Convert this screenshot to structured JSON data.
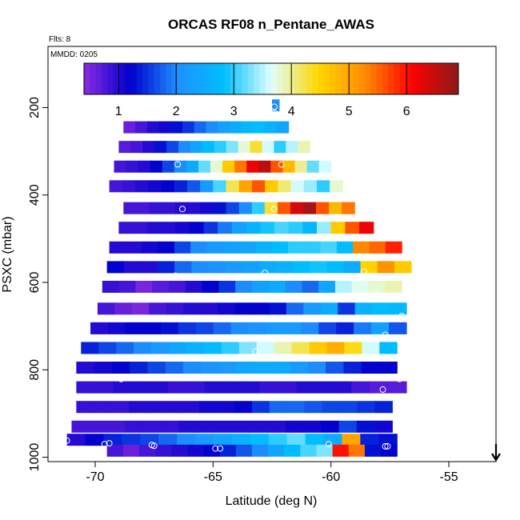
{
  "chart_data": {
    "type": "heatmap",
    "title": "ORCAS RF08 n_Pentane_AWAS",
    "flights_note": "Flts: 8",
    "date_note": "MMDD: 0205",
    "xlabel": "Latitude (deg N)",
    "ylabel": "PSXC (mbar)",
    "xlim": [
      -72,
      -53
    ],
    "ylim": [
      1010,
      60
    ],
    "y_reversed": true,
    "x_ticks": [
      -70,
      -65,
      -60,
      -55
    ],
    "x_tick_labels": [
      "-70",
      "-65",
      "-60",
      "-55"
    ],
    "y_ticks": [
      200,
      400,
      600,
      800,
      1000
    ],
    "y_tick_labels": [
      "200",
      "400",
      "600",
      "800",
      "1000"
    ],
    "colorbar": {
      "min": 0.4,
      "max": 6.9,
      "ticks": [
        1,
        2,
        3,
        4,
        5,
        6
      ],
      "tick_labels": [
        "1",
        "2",
        "3",
        "4",
        "5",
        "6"
      ],
      "colors": [
        "#8a2be2",
        "#0000cd",
        "#1e90ff",
        "#00bfff",
        "#e0ffff",
        "#ffd700",
        "#ff8c00",
        "#ff0000",
        "#8b1a1a"
      ]
    },
    "band_height_mbar": 50,
    "bands": [
      {
        "p": 195,
        "lat_start": -62.5,
        "lat_end": -62.2,
        "values": [
          2.0
        ]
      },
      {
        "p": 245,
        "lat_start": -68.8,
        "lat_end": -61.8,
        "values": [
          0.6,
          0.8,
          1.0,
          1.1,
          1.3,
          1.5,
          1.8,
          2.0,
          2.3,
          2.5,
          2.7,
          2.8,
          2.6,
          2.4
        ]
      },
      {
        "p": 290,
        "lat_start": -69.0,
        "lat_end": -60.9,
        "values": [
          0.7,
          0.8,
          1.0,
          1.3,
          1.6,
          2.0,
          2.4,
          2.8,
          3.0,
          3.3,
          3.8,
          4.3,
          3.6,
          3.0,
          3.5,
          3.9
        ]
      },
      {
        "p": 335,
        "lat_start": -69.2,
        "lat_end": -60.0,
        "values": [
          0.8,
          0.9,
          1.0,
          1.2,
          1.6,
          2.0,
          2.5,
          3.2,
          3.8,
          4.6,
          5.4,
          6.2,
          6.6,
          5.6,
          4.8,
          4.0,
          3.2,
          3.6
        ]
      },
      {
        "p": 380,
        "lat_start": -69.4,
        "lat_end": -59.5,
        "values": [
          0.8,
          0.9,
          1.0,
          1.1,
          1.2,
          1.4,
          1.7,
          2.2,
          3.1,
          4.2,
          5.0,
          5.6,
          4.6,
          4.1,
          3.6,
          3.4,
          3.0,
          3.8
        ]
      },
      {
        "p": 430,
        "lat_start": -68.8,
        "lat_end": -59.0,
        "values": [
          0.8,
          0.8,
          0.9,
          0.9,
          1.0,
          1.0,
          1.1,
          1.3,
          1.6,
          2.0,
          3.0,
          4.3,
          5.6,
          6.4,
          6.7,
          5.6,
          4.8,
          5.4
        ]
      },
      {
        "p": 475,
        "lat_start": -69.0,
        "lat_end": -58.2,
        "values": [
          0.9,
          0.9,
          1.0,
          1.0,
          1.1,
          1.2,
          1.5,
          1.9,
          2.3,
          2.6,
          2.9,
          3.1,
          3.0,
          2.7,
          3.4,
          4.6,
          5.6,
          6.2
        ]
      },
      {
        "p": 520,
        "lat_start": -69.4,
        "lat_end": -57.0,
        "values": [
          1.0,
          1.0,
          1.1,
          1.2,
          1.6,
          2.0,
          2.2,
          2.3,
          2.4,
          2.6,
          2.8,
          3.0,
          3.0,
          3.1,
          2.8,
          5.3,
          5.5,
          5.9
        ]
      },
      {
        "p": 565,
        "lat_start": -69.5,
        "lat_end": -56.6,
        "values": [
          1.2,
          1.0,
          1.0,
          1.4,
          1.8,
          2.0,
          2.1,
          2.2,
          2.3,
          2.5,
          2.6,
          2.8,
          2.9,
          2.8,
          2.5,
          4.5,
          5.2,
          4.6
        ]
      },
      {
        "p": 610,
        "lat_start": -69.7,
        "lat_end": -57.0,
        "values": [
          0.9,
          0.8,
          0.5,
          0.7,
          0.8,
          1.0,
          1.2,
          1.5,
          2.0,
          2.3,
          2.5,
          2.0,
          1.8,
          2.4,
          3.5,
          3.7,
          3.8,
          3.9
        ]
      },
      {
        "p": 660,
        "lat_start": -69.9,
        "lat_end": -56.8,
        "values": [
          0.8,
          0.6,
          0.5,
          0.8,
          0.9,
          1.0,
          1.0,
          1.1,
          1.2,
          1.2,
          1.3,
          1.8,
          2.2,
          2.5,
          1.5,
          2.6,
          2.8,
          2.7
        ]
      },
      {
        "p": 705,
        "lat_start": -70.2,
        "lat_end": -56.8,
        "values": [
          1.0,
          1.1,
          1.2,
          1.2,
          1.3,
          1.5,
          1.6,
          1.8,
          2.0,
          2.1,
          2.2,
          2.2,
          2.0,
          1.6,
          1.4,
          1.9,
          2.3,
          1.7
        ]
      },
      {
        "p": 750,
        "lat_start": -70.6,
        "lat_end": -57.2,
        "values": [
          1.4,
          1.6,
          1.8,
          2.0,
          2.2,
          2.4,
          2.6,
          2.8,
          3.0,
          3.3,
          3.6,
          3.9,
          4.2,
          4.6,
          4.9,
          4.4,
          3.6,
          2.8
        ]
      },
      {
        "p": 795,
        "lat_start": -70.8,
        "lat_end": -57.2,
        "values": [
          1.0,
          1.1,
          1.2,
          1.4,
          1.6,
          1.8,
          2.0,
          2.1,
          2.2,
          2.4,
          2.5,
          2.5,
          2.2,
          2.0,
          1.7,
          1.4,
          1.2,
          1.2
        ]
      },
      {
        "p": 840,
        "lat_start": -70.8,
        "lat_end": -56.8,
        "values": [
          0.9,
          0.9,
          1.0,
          1.0,
          1.0,
          0.9,
          0.9,
          1.0,
          1.0,
          1.0,
          0.9,
          0.9,
          1.0,
          1.0,
          1.0,
          0.8,
          0.7,
          0.7
        ]
      },
      {
        "p": 885,
        "lat_start": -70.8,
        "lat_end": -57.4,
        "values": [
          0.9,
          0.9,
          0.9,
          1.0,
          1.0,
          1.0,
          1.0,
          1.1,
          1.1,
          1.2,
          1.5,
          1.8,
          1.8,
          1.7,
          1.6,
          1.6,
          1.5,
          1.4
        ]
      },
      {
        "p": 930,
        "lat_start": -71.0,
        "lat_end": -57.4,
        "values": [
          0.8,
          0.8,
          0.8,
          0.9,
          0.9,
          0.9,
          1.0,
          1.0,
          1.0,
          1.0,
          1.0,
          1.0,
          1.1,
          1.1,
          1.2,
          1.6,
          1.3,
          1.1
        ]
      },
      {
        "p": 960,
        "lat_start": -71.2,
        "lat_end": -57.2,
        "values": [
          1.0,
          1.2,
          1.4,
          1.5,
          1.6,
          1.8,
          2.0,
          2.2,
          2.4,
          2.6,
          2.8,
          3.0,
          3.2,
          2.8,
          2.5,
          5.0,
          1.4,
          1.3
        ]
      },
      {
        "p": 985,
        "lat_start": -69.5,
        "lat_end": -57.2,
        "values": [
          0.8,
          0.6,
          0.8,
          0.9,
          1.0,
          1.1,
          1.2,
          1.4,
          1.7,
          2.0,
          2.4,
          2.8,
          3.1,
          3.3,
          6.0,
          5.4,
          1.3,
          1.2
        ]
      }
    ],
    "points": [
      {
        "x": -68.8,
        "y": 212
      },
      {
        "x": -62.4,
        "y": 198
      },
      {
        "x": -62.4,
        "y": 212
      },
      {
        "x": -66.5,
        "y": 330
      },
      {
        "x": -62.1,
        "y": 330
      },
      {
        "x": -66.3,
        "y": 432
      },
      {
        "x": -62.4,
        "y": 432
      },
      {
        "x": -66.6,
        "y": 585
      },
      {
        "x": -62.8,
        "y": 578
      },
      {
        "x": -58.6,
        "y": 575
      },
      {
        "x": -58.1,
        "y": 624
      },
      {
        "x": -57.0,
        "y": 677
      },
      {
        "x": -70.9,
        "y": 775
      },
      {
        "x": -67.1,
        "y": 771
      },
      {
        "x": -63.2,
        "y": 758
      },
      {
        "x": -57.7,
        "y": 720
      },
      {
        "x": -68.9,
        "y": 821
      },
      {
        "x": -57.1,
        "y": 821
      },
      {
        "x": -57.8,
        "y": 845
      },
      {
        "x": -71.2,
        "y": 962
      },
      {
        "x": -69.4,
        "y": 968
      },
      {
        "x": -69.6,
        "y": 970
      },
      {
        "x": -67.6,
        "y": 972
      },
      {
        "x": -67.5,
        "y": 974
      },
      {
        "x": -64.9,
        "y": 980
      },
      {
        "x": -64.7,
        "y": 980
      },
      {
        "x": -60.1,
        "y": 970
      },
      {
        "x": -57.7,
        "y": 975
      },
      {
        "x": -57.6,
        "y": 975
      }
    ],
    "arrow": {
      "x": -53.0,
      "direction": "down"
    }
  }
}
